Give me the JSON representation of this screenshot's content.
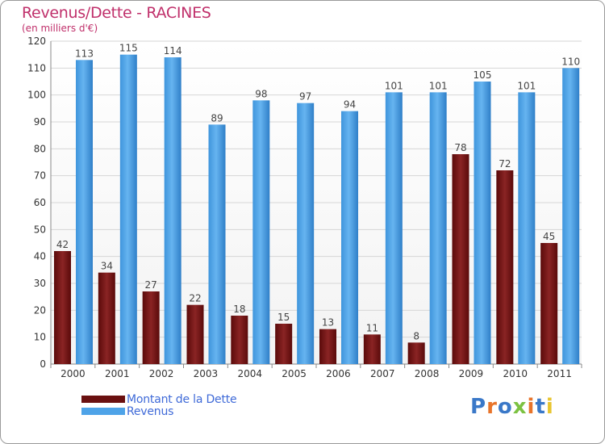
{
  "header": {
    "title": "Revenus/Dette - RACINES",
    "subtitle": "(en milliers d'€)"
  },
  "legend": {
    "items": [
      {
        "label": "Montant de la Dette",
        "color": "#7a1a1a"
      },
      {
        "label": "Revenus",
        "color": "#4ea3e8"
      }
    ]
  },
  "logo": {
    "text": "Proxiti",
    "letter_colors": [
      "#3a78c8",
      "#e8742a",
      "#3a78c8",
      "#7cc242",
      "#e8742a",
      "#3a78c8",
      "#e8c530"
    ]
  },
  "chart_data": {
    "type": "bar",
    "categories": [
      "2000",
      "2001",
      "2002",
      "2003",
      "2004",
      "2005",
      "2006",
      "2007",
      "2008",
      "2009",
      "2010",
      "2011"
    ],
    "series": [
      {
        "name": "Montant de la Dette",
        "values": [
          42,
          34,
          27,
          22,
          18,
          15,
          13,
          11,
          8,
          78,
          72,
          45
        ],
        "color": "#7a1a1a"
      },
      {
        "name": "Revenus",
        "values": [
          113,
          115,
          114,
          89,
          98,
          97,
          94,
          101,
          101,
          105,
          101,
          110
        ],
        "color": "#4ea3e8"
      }
    ],
    "yticks": [
      0,
      10,
      20,
      30,
      40,
      50,
      60,
      70,
      80,
      90,
      100,
      110,
      120
    ],
    "ylim": [
      0,
      120
    ],
    "grid": true,
    "data_labels": true,
    "legend_position": "bottom-left"
  }
}
